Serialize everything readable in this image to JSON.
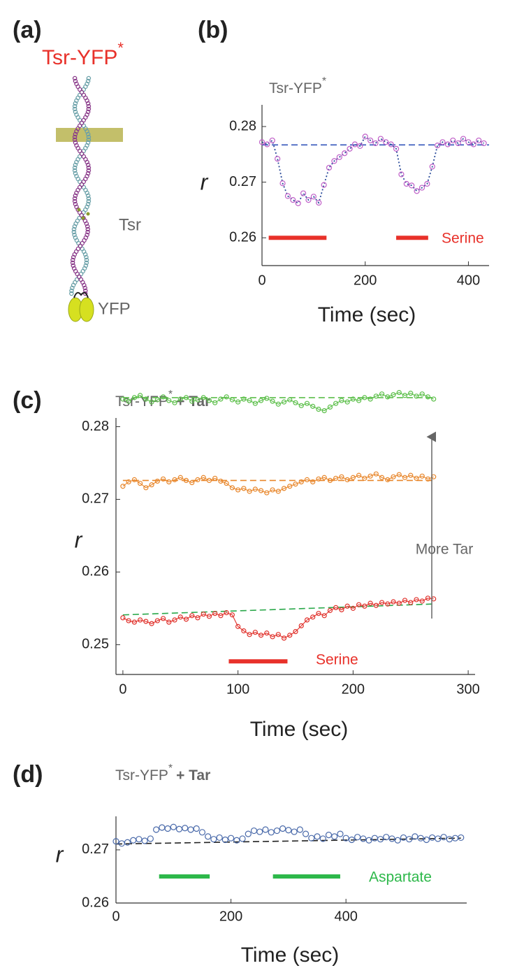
{
  "figure_a": {
    "panel": "(a)",
    "title": "Tsr-YFP",
    "title_sup": "*",
    "labels": [
      "Tsr",
      "YFP"
    ]
  },
  "chart_data": [
    {
      "type": "scatter",
      "panel": "(b)",
      "title": "Tsr-YFP",
      "title_sup": "*",
      "ylabel": "r",
      "xlabel": "Time (sec)",
      "xlim": [
        0,
        440
      ],
      "ylim": [
        0.255,
        0.2839
      ],
      "xticks": [
        0,
        200,
        400
      ],
      "yticks": [
        0.26,
        0.27,
        0.28
      ],
      "series": [
        {
          "color": "#c060c8",
          "line_color": "#2a4a9a",
          "line": "dotted",
          "x": [
            0,
            10,
            20,
            30,
            40,
            50,
            60,
            70,
            80,
            90,
            100,
            110,
            120,
            130,
            140,
            150,
            160,
            170,
            180,
            190,
            200,
            210,
            220,
            230,
            240,
            250,
            260,
            270,
            280,
            290,
            300,
            310,
            320,
            330,
            340,
            350,
            360,
            370,
            380,
            390,
            400,
            410,
            420,
            430
          ],
          "values": [
            0.2772,
            0.2768,
            0.2775,
            0.2742,
            0.2698,
            0.2675,
            0.2668,
            0.2662,
            0.268,
            0.2668,
            0.2674,
            0.2663,
            0.2695,
            0.2726,
            0.2738,
            0.2745,
            0.2752,
            0.276,
            0.2768,
            0.2765,
            0.2782,
            0.2775,
            0.277,
            0.2778,
            0.2772,
            0.2768,
            0.276,
            0.2714,
            0.2697,
            0.2694,
            0.2684,
            0.269,
            0.2697,
            0.2728,
            0.2766,
            0.2772,
            0.2768,
            0.2775,
            0.277,
            0.2778,
            0.2772,
            0.2768,
            0.2775,
            0.277
          ]
        }
      ],
      "hlines": [
        {
          "x": [
            0,
            440
          ],
          "y": [
            0.2767,
            0.2767
          ],
          "color": "#3355bb"
        }
      ],
      "bars": [
        {
          "x": [
            13,
            125
          ],
          "y": 0.26,
          "color": "#e8312a"
        },
        {
          "x": [
            260,
            322
          ],
          "y": 0.26,
          "color": "#e8312a"
        }
      ],
      "annotations": [
        {
          "text": "Serine",
          "color": "#e8312a"
        }
      ]
    },
    {
      "type": "scatter",
      "panel": "(c)",
      "title": "Tsr-YFP",
      "title_sup": "*",
      "title_suffix": "+ Tar",
      "ylabel": "r",
      "xlabel": "Time (sec)",
      "xlim": [
        -6,
        306
      ],
      "ylim": [
        0.2459,
        0.2812
      ],
      "xticks": [
        0,
        100,
        200,
        300
      ],
      "yticks": [
        0.25,
        0.26,
        0.27,
        0.28
      ],
      "series": [
        {
          "color": "#5cbf4a",
          "line": "solid",
          "line_color": "#5cbf4a",
          "x": [
            0,
            5,
            10,
            15,
            20,
            25,
            30,
            35,
            40,
            45,
            50,
            55,
            60,
            65,
            70,
            75,
            80,
            85,
            90,
            95,
            100,
            105,
            110,
            115,
            120,
            125,
            130,
            135,
            140,
            145,
            150,
            155,
            160,
            165,
            170,
            175,
            180,
            185,
            190,
            195,
            200,
            205,
            210,
            215,
            220,
            225,
            230,
            235,
            240,
            245,
            250,
            255,
            260,
            265,
            270
          ],
          "values": [
            0.2838,
            0.2835,
            0.284,
            0.2843,
            0.2838,
            0.2834,
            0.2837,
            0.2841,
            0.2836,
            0.2833,
            0.2838,
            0.284,
            0.2835,
            0.2837,
            0.284,
            0.2836,
            0.2833,
            0.2838,
            0.2841,
            0.2837,
            0.2834,
            0.2838,
            0.2836,
            0.2832,
            0.2836,
            0.2839,
            0.2835,
            0.2831,
            0.2834,
            0.2837,
            0.2833,
            0.2829,
            0.2832,
            0.2828,
            0.2824,
            0.2822,
            0.2827,
            0.2832,
            0.2836,
            0.2834,
            0.2838,
            0.2836,
            0.284,
            0.2838,
            0.2842,
            0.2845,
            0.2841,
            0.2844,
            0.2847,
            0.2843,
            0.2846,
            0.2842,
            0.2845,
            0.2841,
            0.2838
          ]
        },
        {
          "color": "#e8862a",
          "line": "solid",
          "line_color": "#e8862a",
          "x": [
            0,
            5,
            10,
            15,
            20,
            25,
            30,
            35,
            40,
            45,
            50,
            55,
            60,
            65,
            70,
            75,
            80,
            85,
            90,
            95,
            100,
            105,
            110,
            115,
            120,
            125,
            130,
            135,
            140,
            145,
            150,
            155,
            160,
            165,
            170,
            175,
            180,
            185,
            190,
            195,
            200,
            205,
            210,
            215,
            220,
            225,
            230,
            235,
            240,
            245,
            250,
            255,
            260,
            265,
            270
          ],
          "values": [
            0.2718,
            0.2724,
            0.2727,
            0.2722,
            0.2716,
            0.272,
            0.2725,
            0.2728,
            0.2724,
            0.2727,
            0.273,
            0.2726,
            0.2723,
            0.2727,
            0.273,
            0.2726,
            0.2729,
            0.2725,
            0.2722,
            0.2716,
            0.2713,
            0.2715,
            0.2711,
            0.2714,
            0.2712,
            0.2709,
            0.2713,
            0.2711,
            0.2715,
            0.2718,
            0.2721,
            0.2724,
            0.2727,
            0.2724,
            0.2728,
            0.273,
            0.2726,
            0.2729,
            0.2731,
            0.2727,
            0.273,
            0.2733,
            0.2729,
            0.2732,
            0.2735,
            0.273,
            0.2727,
            0.2731,
            0.2734,
            0.273,
            0.2733,
            0.2729,
            0.2732,
            0.2728,
            0.2731
          ]
        },
        {
          "color": "#e0302a",
          "line": "solid",
          "line_color": "#e0302a",
          "x": [
            0,
            5,
            10,
            15,
            20,
            25,
            30,
            35,
            40,
            45,
            50,
            55,
            60,
            65,
            70,
            75,
            80,
            85,
            90,
            95,
            100,
            105,
            110,
            115,
            120,
            125,
            130,
            135,
            140,
            145,
            150,
            155,
            160,
            165,
            170,
            175,
            180,
            185,
            190,
            195,
            200,
            205,
            210,
            215,
            220,
            225,
            230,
            235,
            240,
            245,
            250,
            255,
            260,
            265,
            270
          ],
          "values": [
            0.2537,
            0.2533,
            0.2531,
            0.2534,
            0.2532,
            0.2529,
            0.2533,
            0.2536,
            0.2531,
            0.2534,
            0.2538,
            0.2535,
            0.254,
            0.2537,
            0.2542,
            0.2539,
            0.2543,
            0.254,
            0.2544,
            0.2541,
            0.2525,
            0.2519,
            0.2514,
            0.2517,
            0.2513,
            0.2516,
            0.2511,
            0.2514,
            0.2509,
            0.2513,
            0.2518,
            0.2526,
            0.2534,
            0.2538,
            0.2543,
            0.254,
            0.2547,
            0.2551,
            0.2548,
            0.2553,
            0.255,
            0.2555,
            0.2553,
            0.2557,
            0.2554,
            0.2558,
            0.2556,
            0.2559,
            0.2557,
            0.2561,
            0.2558,
            0.2562,
            0.256,
            0.2564,
            0.2563
          ]
        }
      ],
      "hlines": [
        {
          "x": [
            0,
            270
          ],
          "y": [
            0.284,
            0.284
          ],
          "color": "#5cbf4a"
        },
        {
          "x": [
            0,
            270
          ],
          "y": [
            0.2726,
            0.2726
          ],
          "color": "#e8862a"
        },
        {
          "x": [
            0,
            270
          ],
          "y": [
            0.2541,
            0.2556
          ],
          "color": "#2aa84a"
        }
      ],
      "bars": [
        {
          "x": [
            92,
            143
          ],
          "y": 0.2477,
          "color": "#e8312a"
        }
      ],
      "annotations": [
        {
          "text": "Serine",
          "color": "#e8312a"
        },
        {
          "text": "More Tar",
          "color": "#666666"
        }
      ]
    },
    {
      "type": "scatter",
      "panel": "(d)",
      "title": "Tsr-YFP",
      "title_sup": "*",
      "title_suffix": "+ Tar",
      "ylabel": "r",
      "xlabel": "Time (sec)",
      "xlim": [
        0,
        610
      ],
      "ylim": [
        0.26,
        0.2763
      ],
      "xticks": [
        0,
        200,
        400
      ],
      "yticks": [
        0.26,
        0.27
      ],
      "series": [
        {
          "color": "#4a6aaa",
          "x": [
            0,
            10,
            20,
            30,
            40,
            50,
            60,
            70,
            80,
            90,
            100,
            110,
            120,
            130,
            140,
            150,
            160,
            170,
            180,
            190,
            200,
            210,
            220,
            230,
            240,
            250,
            260,
            270,
            280,
            290,
            300,
            310,
            320,
            330,
            340,
            350,
            360,
            370,
            380,
            390,
            400,
            410,
            420,
            430,
            440,
            450,
            460,
            470,
            480,
            490,
            500,
            510,
            520,
            530,
            540,
            550,
            560,
            570,
            580,
            590,
            600
          ],
          "values": [
            0.2716,
            0.2712,
            0.2714,
            0.2718,
            0.272,
            0.2717,
            0.2721,
            0.2738,
            0.2742,
            0.274,
            0.2743,
            0.2739,
            0.2741,
            0.2738,
            0.274,
            0.2733,
            0.2725,
            0.272,
            0.2723,
            0.2719,
            0.2722,
            0.2718,
            0.2721,
            0.273,
            0.2736,
            0.2734,
            0.2738,
            0.2733,
            0.2736,
            0.274,
            0.2737,
            0.2734,
            0.2738,
            0.273,
            0.2722,
            0.2725,
            0.2721,
            0.2728,
            0.2725,
            0.273,
            0.2722,
            0.2719,
            0.2724,
            0.2721,
            0.2718,
            0.2722,
            0.272,
            0.2724,
            0.2721,
            0.2718,
            0.2723,
            0.272,
            0.2725,
            0.2722,
            0.2719,
            0.2723,
            0.2721,
            0.2724,
            0.272,
            0.2722,
            0.2723
          ]
        }
      ],
      "hlines": [
        {
          "x": [
            0,
            600
          ],
          "y": [
            0.2711,
            0.2722
          ],
          "color": "#222222"
        }
      ],
      "bars": [
        {
          "x": [
            75,
            163
          ],
          "y": 0.265,
          "color": "#2db84a"
        },
        {
          "x": [
            273,
            390
          ],
          "y": 0.265,
          "color": "#2db84a"
        }
      ],
      "annotations": [
        {
          "text": "Aspartate",
          "color": "#2db84a"
        }
      ]
    }
  ]
}
